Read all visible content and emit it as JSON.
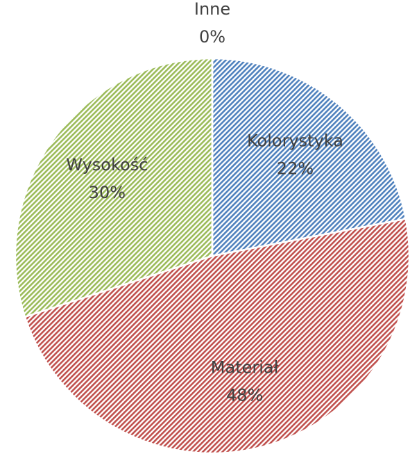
{
  "chart_data": {
    "type": "pie",
    "categories": [
      "Kolorystyka",
      "Materiał",
      "Wysokość",
      "Inne"
    ],
    "values": [
      22,
      48,
      30,
      0
    ],
    "value_labels": [
      "22%",
      "48%",
      "30%",
      "0%"
    ],
    "colors": [
      "#4f81bd",
      "#c0504d",
      "#9bbb59",
      "#8064a2"
    ]
  }
}
